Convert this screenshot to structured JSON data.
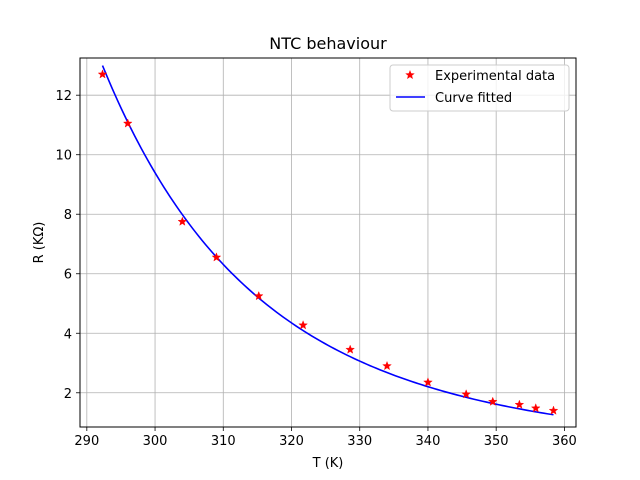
{
  "chart_data": {
    "type": "line",
    "title": "NTC behaviour",
    "xlabel": "T (K)",
    "ylabel": "R (KΩ)",
    "xlim": [
      289.0,
      361.7
    ],
    "ylim": [
      0.85,
      13.25
    ],
    "xticks": [
      290,
      300,
      310,
      320,
      330,
      340,
      350,
      360
    ],
    "yticks": [
      2,
      4,
      6,
      8,
      10,
      12
    ],
    "grid": true,
    "legend_position": "top-right",
    "series": [
      {
        "name": "Experimental data",
        "kind": "scatter",
        "marker": "star",
        "color": "#ff0000",
        "x": [
          292.3,
          296.0,
          304.0,
          309.0,
          315.2,
          321.7,
          328.6,
          334.0,
          340.0,
          345.6,
          349.5,
          353.4,
          355.8,
          358.4
        ],
        "y": [
          12.7,
          11.05,
          7.75,
          6.55,
          5.25,
          4.27,
          3.45,
          2.9,
          2.35,
          1.95,
          1.7,
          1.6,
          1.48,
          1.4
        ]
      },
      {
        "name": "Curve fitted",
        "kind": "line",
        "color": "#0000ff",
        "model": "beta",
        "R0": 6.561,
        "T0": 309.0,
        "B": 3697,
        "x_range": [
          292.3,
          358.4
        ]
      }
    ]
  }
}
